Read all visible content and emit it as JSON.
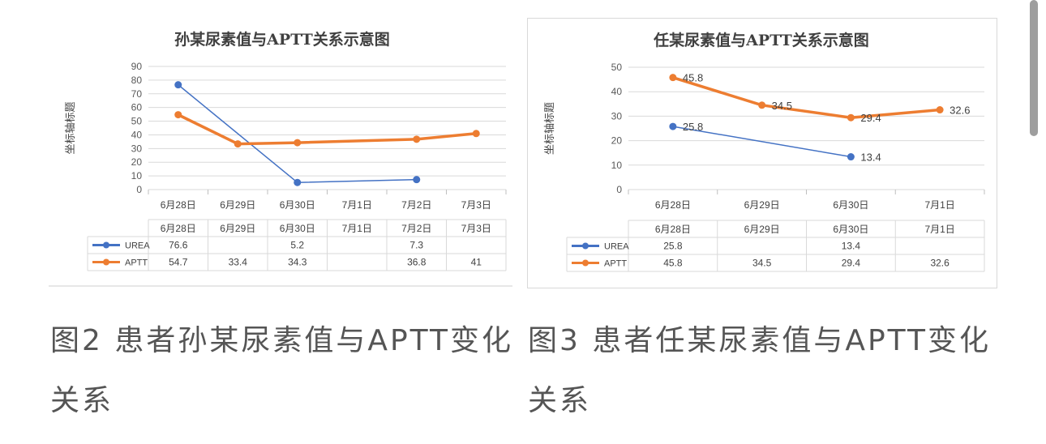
{
  "charts": [
    {
      "type": "line",
      "title": "孙某尿素值与APTT关系示意图",
      "ylabel": "坐标轴标题",
      "categories": [
        "6月28日",
        "6月29日",
        "6月30日",
        "7月1日",
        "7月2日",
        "7月3日"
      ],
      "ylim": [
        0,
        90
      ],
      "yticks": [
        0,
        10,
        20,
        30,
        40,
        50,
        60,
        70,
        80,
        90
      ],
      "data_labels": false,
      "series": [
        {
          "name": "UREA",
          "color": "#4472c4",
          "values": [
            76.6,
            null,
            5.2,
            null,
            7.3,
            null
          ]
        },
        {
          "name": "APTT",
          "color": "#ed7d31",
          "values": [
            54.7,
            33.4,
            34.3,
            null,
            36.8,
            41
          ]
        }
      ],
      "table": [
        [
          "76.6",
          "",
          "5.2",
          "",
          "7.3",
          ""
        ],
        [
          "54.7",
          "33.4",
          "34.3",
          "",
          "36.8",
          "41"
        ]
      ]
    },
    {
      "type": "line",
      "title": "任某尿素值与APTT关系示意图",
      "ylabel": "坐标轴标题",
      "categories": [
        "6月28日",
        "6月29日",
        "6月30日",
        "7月1日"
      ],
      "ylim": [
        0,
        50
      ],
      "yticks": [
        0,
        10,
        20,
        30,
        40,
        50
      ],
      "data_labels": true,
      "series": [
        {
          "name": "UREA",
          "color": "#4472c4",
          "values": [
            25.8,
            null,
            13.4,
            null
          ]
        },
        {
          "name": "APTT",
          "color": "#ed7d31",
          "values": [
            45.8,
            34.5,
            29.4,
            32.6
          ]
        }
      ],
      "table": [
        [
          "25.8",
          "",
          "13.4",
          ""
        ],
        [
          "45.8",
          "34.5",
          "29.4",
          "32.6"
        ]
      ]
    }
  ],
  "captions": {
    "left": "图2 患者孙某尿素值与APTT变化关系",
    "right": "图3 患者任某尿素值与APTT变化关系"
  }
}
